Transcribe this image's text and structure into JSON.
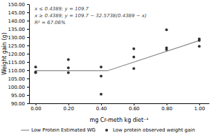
{
  "chart_data": {
    "type": "scatter",
    "xlabel": "mg Cr-meth kg diet⁻¹",
    "ylabel": "Weight gain (g)",
    "annotations": [
      "x ≤ 0.4389; y = 109.7",
      "x ≥ 0.4389; y = 109.7 − 32.5738(0.4389 − x)",
      "R² = 67.06%"
    ],
    "xlim": [
      -0.04,
      1.06
    ],
    "ylim": [
      90.0,
      150.0
    ],
    "xticks": [
      {
        "value": 0.0,
        "label": "0.00"
      },
      {
        "value": 0.2,
        "label": "0.20"
      },
      {
        "value": 0.4,
        "label": "0.40"
      },
      {
        "value": 0.6,
        "label": "0.60"
      },
      {
        "value": 0.8,
        "label": "0.80"
      },
      {
        "value": 1.0,
        "label": "1.00"
      }
    ],
    "yticks": [
      {
        "value": 90.0,
        "label": "90.00"
      },
      {
        "value": 95.0,
        "label": "95.00"
      },
      {
        "value": 100.0,
        "label": "100.00"
      },
      {
        "value": 105.0,
        "label": "105.00"
      },
      {
        "value": 110.0,
        "label": "110.00"
      },
      {
        "value": 115.0,
        "label": "115.00"
      },
      {
        "value": 120.0,
        "label": "120.00"
      },
      {
        "value": 125.0,
        "label": "125.00"
      },
      {
        "value": 130.0,
        "label": "130.00"
      },
      {
        "value": 135.0,
        "label": "135.00"
      },
      {
        "value": 140.0,
        "label": "140.00"
      },
      {
        "value": 145.0,
        "label": "145.00"
      },
      {
        "value": 150.0,
        "label": "150.00"
      }
    ],
    "grid": false,
    "legend": "bottom",
    "series": [
      {
        "name": "Low Protein Estimated WG",
        "type": "line",
        "color": "#888888",
        "x": [
          0.0,
          0.4389,
          1.0
        ],
        "values": [
          109.7,
          109.7,
          127.97715918
        ]
      },
      {
        "name": "Low protein observed weight gain",
        "type": "scatter",
        "color": "#333333",
        "x": [
          0.0,
          0.0,
          0.0,
          0.2,
          0.2,
          0.2,
          0.4,
          0.4,
          0.4,
          0.6,
          0.6,
          0.6,
          0.8,
          0.8,
          0.8,
          1.0,
          1.0,
          1.0
        ],
        "values": [
          112.0,
          109.0,
          108.5,
          116.5,
          111.5,
          108.5,
          112.0,
          106.5,
          95.5,
          123.0,
          118.0,
          111.0,
          134.5,
          123.5,
          122.5,
          129.0,
          128.0,
          124.5
        ]
      }
    ]
  }
}
